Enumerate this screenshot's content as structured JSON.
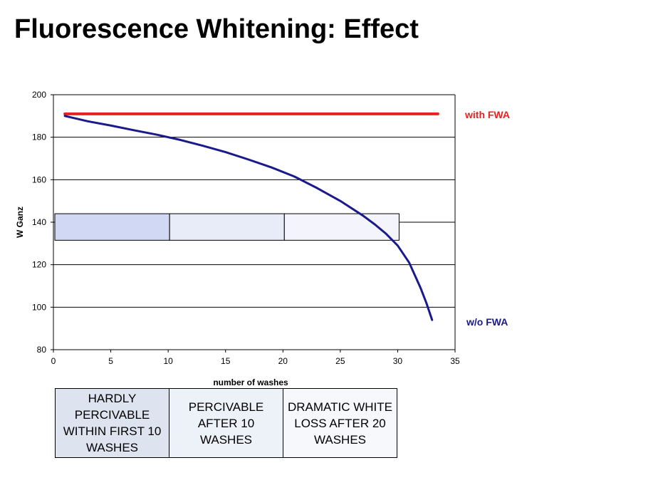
{
  "slide": {
    "title": "Fluorescence Whitening: Effect"
  },
  "phase_boxes": [
    {
      "text": "HARDLY PERCIVABLE WITHIN FIRST 10 WASHES",
      "color": "#dde4ef"
    },
    {
      "text": "PERCIVABLE AFTER 10 WASHES",
      "color": "#edf1f8"
    },
    {
      "text": "DRAMATIC WHITE LOSS AFTER 20 WASHES",
      "color": "#f6f8fc"
    }
  ],
  "chart_data": {
    "type": "line",
    "title": "",
    "xlabel": "number of washes",
    "ylabel": "W Ganz",
    "xlim": [
      0,
      35
    ],
    "ylim": [
      80,
      200
    ],
    "xticks": [
      0,
      5,
      10,
      15,
      20,
      25,
      30,
      35
    ],
    "yticks": [
      80,
      100,
      120,
      140,
      160,
      180,
      200
    ],
    "grid": "horizontal",
    "series": [
      {
        "name": "with FWA",
        "color": "#e8201e",
        "x": [
          1,
          33.5
        ],
        "y": [
          191,
          191
        ]
      },
      {
        "name": "w/o FWA",
        "color": "#1a1a8c",
        "x": [
          1,
          3,
          5,
          7,
          9,
          11,
          13,
          15,
          17,
          19,
          21,
          23,
          25,
          27,
          28,
          29,
          30,
          31,
          32,
          32.5,
          33
        ],
        "y": [
          190,
          187.5,
          185.5,
          183.3,
          181.2,
          178.8,
          176,
          173,
          169.5,
          165.8,
          161.5,
          156,
          150,
          143,
          139,
          134.5,
          129,
          121,
          109,
          102,
          94
        ]
      }
    ],
    "bands": [
      {
        "x_start": 0,
        "x_end": 10,
        "y_low": 131.5,
        "y_high": 144,
        "color": "#d0d8f4"
      },
      {
        "x_start": 10,
        "x_end": 20,
        "y_low": 131.5,
        "y_high": 144,
        "color": "#e8ebf8"
      },
      {
        "x_start": 20,
        "x_end": 30,
        "y_low": 131.5,
        "y_high": 144,
        "color": "#f4f5fc"
      }
    ]
  }
}
